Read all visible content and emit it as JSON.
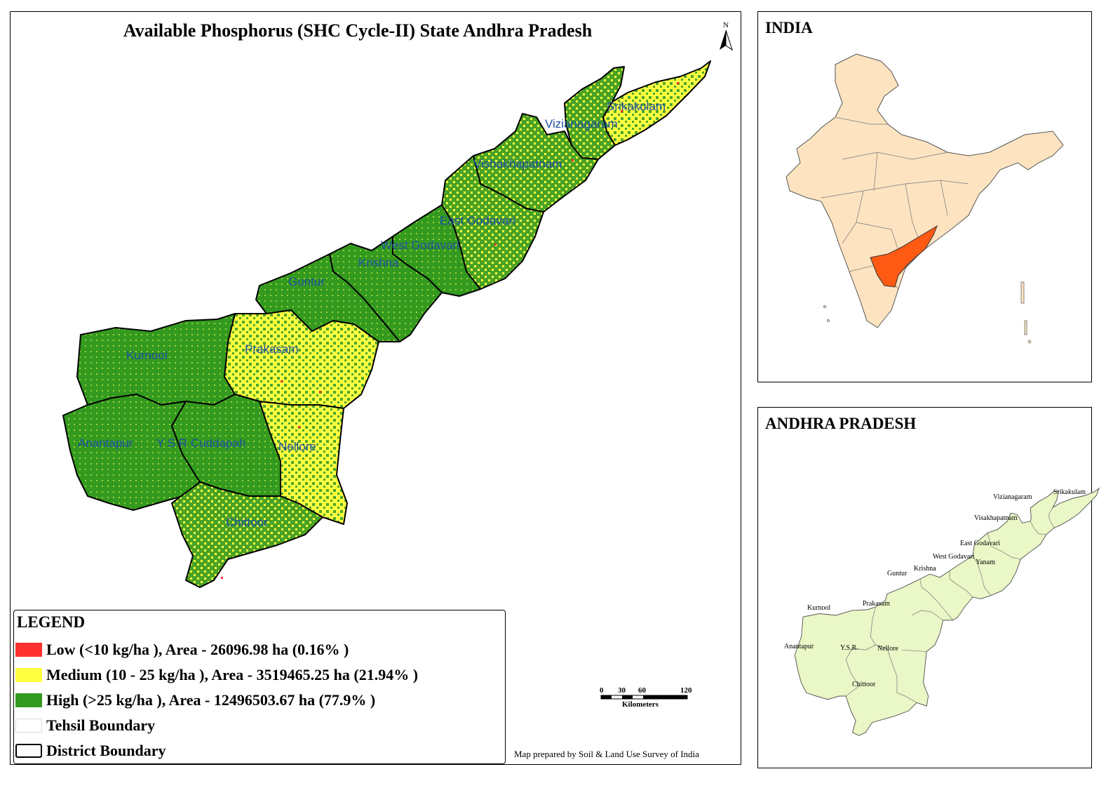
{
  "map": {
    "title": "Available Phosphorus (SHC Cycle-II) State Andhra Pradesh",
    "north_label": "N",
    "districts": [
      {
        "name": "Srikakulam",
        "dominant_class": "medium"
      },
      {
        "name": "Vizianagaram",
        "dominant_class": "high"
      },
      {
        "name": "Vishakhapatnam",
        "dominant_class": "high"
      },
      {
        "name": "East Godavari",
        "dominant_class": "high"
      },
      {
        "name": "West Godavari",
        "dominant_class": "high"
      },
      {
        "name": "Krishna",
        "dominant_class": "high"
      },
      {
        "name": "Guntur",
        "dominant_class": "high"
      },
      {
        "name": "Prakasam",
        "dominant_class": "medium"
      },
      {
        "name": "Kurnool",
        "dominant_class": "high"
      },
      {
        "name": "Anantapur",
        "dominant_class": "high"
      },
      {
        "name": "Y S R Cuddapah",
        "dominant_class": "high"
      },
      {
        "name": "Nellore",
        "dominant_class": "medium"
      },
      {
        "name": "Chittoor",
        "dominant_class": "medium"
      }
    ],
    "colors": {
      "low": "#ff3030",
      "medium": "#ffff40",
      "high": "#339a1f",
      "district_boundary": "#000000",
      "label": "#1f4fa3"
    }
  },
  "legend": {
    "title": "LEGEND",
    "items": [
      {
        "label": "Low  (<10 kg/ha ), Area - 26096.98  ha (0.16% )",
        "color": "#ff3030"
      },
      {
        "label": "Medium  (10 - 25 kg/ha ), Area - 3519465.25  ha (21.94% )",
        "color": "#ffff40"
      },
      {
        "label": "High  (>25 kg/ha ), Area - 12496503.67  ha (77.9% )",
        "color": "#339a1f"
      },
      {
        "label": "Tehsil Boundary",
        "color": "#ffffff"
      },
      {
        "label": "District Boundary",
        "color": "#ffffff"
      }
    ]
  },
  "scale": {
    "ticks": [
      "0",
      "30",
      "60",
      "120"
    ],
    "unit": "Kilometers"
  },
  "credit": "Map prepared by Soil & Land Use Survey of India",
  "inset_india": {
    "title": "INDIA",
    "colors": {
      "country": "#fde3c0",
      "state": "#ff5a14"
    }
  },
  "inset_ap": {
    "title": "ANDHRA PRADESH",
    "fill": "#eaf7c6",
    "districts": [
      "Srikakulam",
      "Vizianagaram",
      "Visakhapatnam",
      "East Godavari",
      "West Godavari",
      "Yanam",
      "Krishna",
      "Guntur",
      "Kurnool",
      "Prakasam",
      "Anantapur",
      "Y.S.R.",
      "Nellore",
      "Chittoor"
    ]
  }
}
